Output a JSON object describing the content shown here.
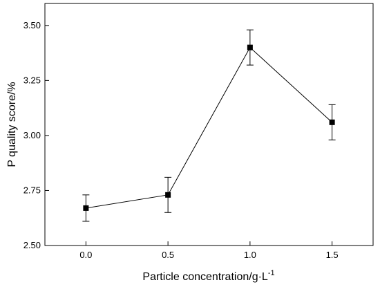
{
  "chart_data": {
    "type": "line",
    "xlabel": "Particle concentration/g·L",
    "xlabel_superscript": "-1",
    "ylabel": "P quality score/%",
    "xlim": [
      -0.25,
      1.75
    ],
    "ylim": [
      2.5,
      3.6
    ],
    "x_ticks": [
      0.0,
      0.5,
      1.0,
      1.5
    ],
    "x_tick_labels": [
      "0.0",
      "0.5",
      "1.0",
      "1.5"
    ],
    "y_ticks": [
      2.5,
      2.75,
      3.0,
      3.25,
      3.5
    ],
    "y_tick_labels": [
      "2.50",
      "2.75",
      "3.00",
      "3.25",
      "3.50"
    ],
    "grid": false,
    "series": [
      {
        "x": [
          0.0,
          0.5,
          1.0,
          1.5
        ],
        "values": [
          2.67,
          2.73,
          3.4,
          3.06
        ],
        "error": [
          0.06,
          0.08,
          0.08,
          0.08
        ],
        "marker": "square",
        "color": "#000000"
      }
    ]
  }
}
